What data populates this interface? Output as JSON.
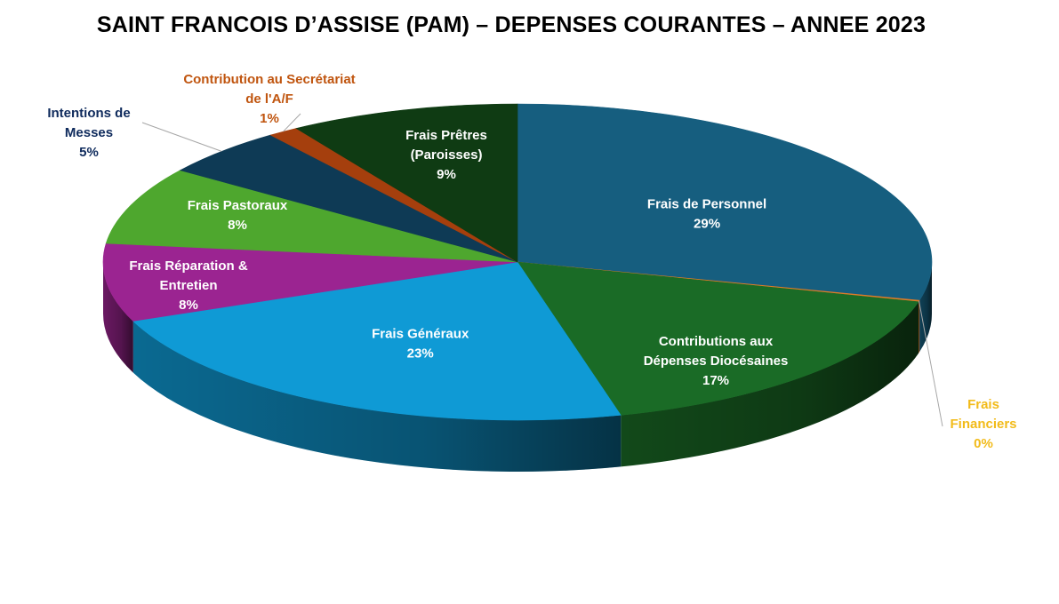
{
  "chart_data": {
    "type": "pie",
    "title": "SAINT FRANCOIS D’ASSISE (PAM) – DEPENSES COURANTES – ANNEE 2023",
    "slices": [
      {
        "label": [
          "Frais de Personnel"
        ],
        "pct_label": "29%",
        "value": 29,
        "color": "#165e7f",
        "label_color": "#ffffff"
      },
      {
        "label": [
          "Frais",
          "Financiers"
        ],
        "pct_label": "0%",
        "value": 0.15,
        "color": "#e07b28",
        "label_color": "#f2bb1a"
      },
      {
        "label": [
          "Contributions aux",
          "Dépenses Diocésaines"
        ],
        "pct_label": "17%",
        "value": 17,
        "color": "#1a6b26",
        "label_color": "#ffffff"
      },
      {
        "label": [
          "Frais Généraux"
        ],
        "pct_label": "23%",
        "value": 23,
        "color": "#0f9ad5",
        "label_color": "#ffffff"
      },
      {
        "label": [
          "Frais Réparation &",
          "Entretien"
        ],
        "pct_label": "8%",
        "value": 8,
        "color": "#9b2491",
        "label_color": "#ffffff"
      },
      {
        "label": [
          "Frais Pastoraux"
        ],
        "pct_label": "8%",
        "value": 8,
        "color": "#4ea72e",
        "label_color": "#ffffff"
      },
      {
        "label": [
          "Intentions de",
          "Messes"
        ],
        "pct_label": "5%",
        "value": 5,
        "color": "#0e3a55",
        "label_color": "#0e2a5c"
      },
      {
        "label": [
          "Contribution au Secrétariat",
          "de l'A/F"
        ],
        "pct_label": "1%",
        "value": 1.2,
        "color": "#a53f0d",
        "label_color": "#c0550f"
      },
      {
        "label": [
          "Frais Prêtres",
          "(Paroisses)"
        ],
        "pct_label": "9%",
        "value": 9,
        "color": "#0f3b13",
        "label_color": "#ffffff"
      }
    ],
    "legend": "none",
    "style": "3d-pie"
  }
}
